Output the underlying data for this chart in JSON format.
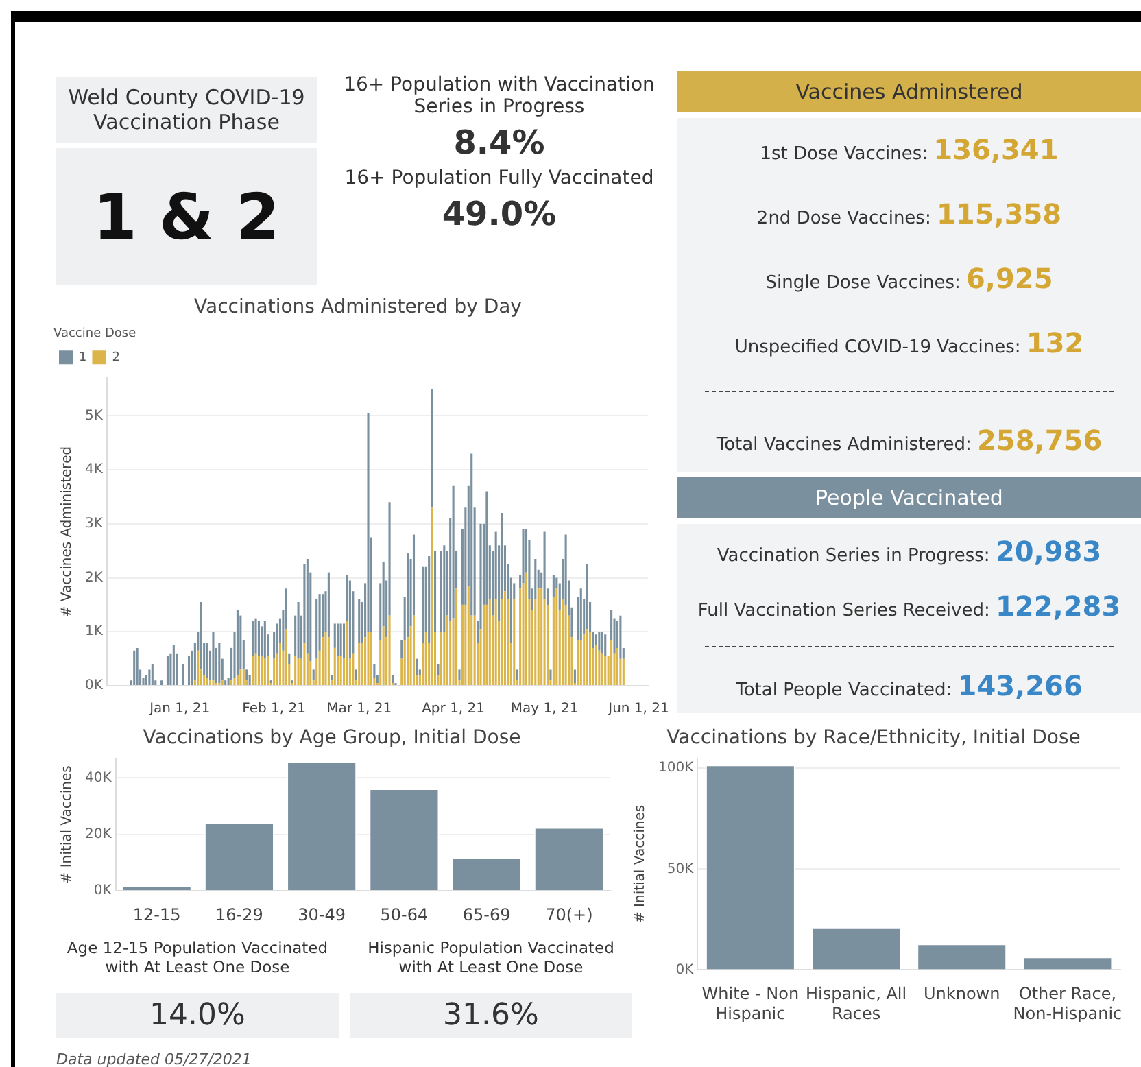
{
  "chart_data": [
    {
      "type": "other",
      "title": "Weld County COVID-19 Vaccination Phase",
      "annotations": [
        "1 & 2"
      ]
    },
    {
      "type": "other",
      "annotations": [
        "16+ Population with Vaccination Series in Progress",
        "8.4%",
        "16+ Population Fully Vaccinated",
        "49.0%"
      ]
    },
    {
      "type": "other",
      "title": "Vaccines Adminstered",
      "annotations": [
        "1st Dose Vaccines: 136,341",
        "2nd Dose Vaccines: 115,358",
        "Single Dose Vaccines: 6,925",
        "Unspecified COVID-19 Vaccines: 132",
        "Total Vaccines Administered: 258,756"
      ]
    },
    {
      "type": "other",
      "title": "People Vaccinated",
      "annotations": [
        "Vaccination Series in Progress: 20,983",
        "Full Vaccination Series Received: 122,283",
        "Total People Vaccinated: 143,266"
      ]
    },
    {
      "type": "bar",
      "title": "Vaccinations Administered by Day",
      "ylabel": "# Vaccines Administered",
      "legend_title": "Vaccine Dose",
      "legend": "top left",
      "stacked": true,
      "grid": "y",
      "x": [
        "2020-12-16",
        "2020-12-17",
        "2020-12-18",
        "2020-12-19",
        "2020-12-20",
        "2020-12-21",
        "2020-12-22",
        "2020-12-23",
        "2020-12-24",
        "2020-12-25",
        "2020-12-26",
        "2020-12-27",
        "2020-12-28",
        "2020-12-29",
        "2020-12-30",
        "2020-12-31",
        "2021-01-01",
        "2021-01-02",
        "2021-01-03",
        "2021-01-04",
        "2021-01-05",
        "2021-01-06",
        "2021-01-07",
        "2021-01-08",
        "2021-01-09",
        "2021-01-10",
        "2021-01-11",
        "2021-01-12",
        "2021-01-13",
        "2021-01-14",
        "2021-01-15",
        "2021-01-16",
        "2021-01-17",
        "2021-01-18",
        "2021-01-19",
        "2021-01-20",
        "2021-01-21",
        "2021-01-22",
        "2021-01-23",
        "2021-01-24",
        "2021-01-25",
        "2021-01-26",
        "2021-01-27",
        "2021-01-28",
        "2021-01-29",
        "2021-01-30",
        "2021-01-31",
        "2021-02-01",
        "2021-02-02",
        "2021-02-03",
        "2021-02-04",
        "2021-02-05",
        "2021-02-06",
        "2021-02-07",
        "2021-02-08",
        "2021-02-09",
        "2021-02-10",
        "2021-02-11",
        "2021-02-12",
        "2021-02-13",
        "2021-02-14",
        "2021-02-15",
        "2021-02-16",
        "2021-02-17",
        "2021-02-18",
        "2021-02-19",
        "2021-02-20",
        "2021-02-21",
        "2021-02-22",
        "2021-02-23",
        "2021-02-24",
        "2021-02-25",
        "2021-02-26",
        "2021-02-27",
        "2021-02-28",
        "2021-03-01",
        "2021-03-02",
        "2021-03-03",
        "2021-03-04",
        "2021-03-05",
        "2021-03-06",
        "2021-03-07",
        "2021-03-08",
        "2021-03-09",
        "2021-03-10",
        "2021-03-11",
        "2021-03-12",
        "2021-03-13",
        "2021-03-14",
        "2021-03-15",
        "2021-03-16",
        "2021-03-17",
        "2021-03-18",
        "2021-03-19",
        "2021-03-20",
        "2021-03-21",
        "2021-03-22",
        "2021-03-23",
        "2021-03-24",
        "2021-03-25",
        "2021-03-26",
        "2021-03-27",
        "2021-03-28",
        "2021-03-29",
        "2021-03-30",
        "2021-03-31",
        "2021-04-01",
        "2021-04-02",
        "2021-04-03",
        "2021-04-04",
        "2021-04-05",
        "2021-04-06",
        "2021-04-07",
        "2021-04-08",
        "2021-04-09",
        "2021-04-10",
        "2021-04-11",
        "2021-04-12",
        "2021-04-13",
        "2021-04-14",
        "2021-04-15",
        "2021-04-16",
        "2021-04-17",
        "2021-04-18",
        "2021-04-19",
        "2021-04-20",
        "2021-04-21",
        "2021-04-22",
        "2021-04-23",
        "2021-04-24",
        "2021-04-25",
        "2021-04-26",
        "2021-04-27",
        "2021-04-28",
        "2021-04-29",
        "2021-04-30",
        "2021-05-01",
        "2021-05-02",
        "2021-05-03",
        "2021-05-04",
        "2021-05-05",
        "2021-05-06",
        "2021-05-07",
        "2021-05-08",
        "2021-05-09",
        "2021-05-10",
        "2021-05-11",
        "2021-05-12",
        "2021-05-13",
        "2021-05-14",
        "2021-05-15",
        "2021-05-16",
        "2021-05-17",
        "2021-05-18",
        "2021-05-19",
        "2021-05-20",
        "2021-05-21",
        "2021-05-22",
        "2021-05-23",
        "2021-05-24",
        "2021-05-25",
        "2021-05-26",
        "2021-05-27"
      ],
      "xlim": [
        "2020-12-08",
        "2021-06-04"
      ],
      "xticks": [
        {
          "value": "2021-01-01",
          "label": "Jan 1, 21"
        },
        {
          "value": "2021-02-01",
          "label": "Feb 1, 21"
        },
        {
          "value": "2021-03-01",
          "label": "Mar 1, 21"
        },
        {
          "value": "2021-04-01",
          "label": "Apr 1, 21"
        },
        {
          "value": "2021-05-01",
          "label": "May 1, 21"
        },
        {
          "value": "2021-06-01",
          "label": "Jun 1, 21"
        }
      ],
      "ylim": [
        0,
        5.7
      ],
      "yticks": [
        {
          "value": 0,
          "label": "0K"
        },
        {
          "value": 1,
          "label": "1K"
        },
        {
          "value": 2,
          "label": "2K"
        },
        {
          "value": 3,
          "label": "3K"
        },
        {
          "value": 4,
          "label": "4K"
        },
        {
          "value": 5,
          "label": "5K"
        }
      ],
      "series": [
        {
          "name": "2",
          "color": "#dcb54a",
          "values": [
            0,
            0,
            0,
            0,
            0,
            0,
            0,
            0,
            0,
            0,
            0,
            0,
            0,
            0,
            0,
            0,
            0,
            0,
            0,
            0,
            0,
            0.1,
            0.65,
            0.3,
            0.2,
            0.15,
            0.1,
            0.1,
            0.05,
            0.05,
            0.1,
            0,
            0,
            0.1,
            0.15,
            0.2,
            0.3,
            0.3,
            0.1,
            0,
            0.55,
            0.6,
            0.55,
            0.55,
            0.5,
            0.55,
            0.05,
            0.5,
            0.6,
            0.8,
            0.65,
            1.05,
            0.4,
            0.05,
            0.55,
            0.5,
            0.5,
            0.8,
            0.6,
            0.45,
            0.1,
            0.5,
            0.65,
            0.9,
            1.0,
            0.9,
            0.1,
            0.7,
            0.55,
            0.55,
            0.5,
            1.2,
            0.5,
            0.6,
            0.1,
            0.8,
            0.8,
            0.9,
            1.0,
            1.0,
            0.15,
            0.05,
            0.85,
            1.1,
            0.9,
            1.3,
            0.05,
            0,
            0,
            0.5,
            0.85,
            0.9,
            1.1,
            1.3,
            0.2,
            0.2,
            0.8,
            1.0,
            0.8,
            3.3,
            1.0,
            0.2,
            1.0,
            1.0,
            1.3,
            1.2,
            1.25,
            1.8,
            0.1,
            1.5,
            1.5,
            1.85,
            1.3,
            1.3,
            0.8,
            1.05,
            1.5,
            1.5,
            1.6,
            1.3,
            1.6,
            1.2,
            1.6,
            1.75,
            1.6,
            0.8,
            1.6,
            0.1,
            1.8,
            1.9,
            2.1,
            1.6,
            1.4,
            1.6,
            1.8,
            1.8,
            1.6,
            1.5,
            0.1,
            1.65,
            1.8,
            1.4,
            1.6,
            1.5,
            1.3,
            0.9,
            0.05,
            0.85,
            0.85,
            0.95,
            1.05,
            1.0,
            0.7,
            0.75,
            0.65,
            0.6,
            0.55,
            0.55,
            0.85,
            0.6,
            0.7,
            0.5,
            0.5
          ]
        },
        {
          "name": "1",
          "color": "#7b909e",
          "values": [
            0.1,
            0.65,
            0.7,
            0.3,
            0.15,
            0.2,
            0.3,
            0.4,
            0.1,
            0,
            0.1,
            0,
            0.55,
            0.6,
            0.75,
            0.6,
            0,
            0.4,
            0,
            0.55,
            0.65,
            0.7,
            0.35,
            1.25,
            0.6,
            0.65,
            0.55,
            0.9,
            0.65,
            0.75,
            0.4,
            0.1,
            0.15,
            0.6,
            0.85,
            1.2,
            1.0,
            0.55,
            0.2,
            0.2,
            0.65,
            0.65,
            0.65,
            0.55,
            0.7,
            0.4,
            0.05,
            0.5,
            0.55,
            0.45,
            0.75,
            0.75,
            0.2,
            0.05,
            0.75,
            1.05,
            0.8,
            1.45,
            1.75,
            1.65,
            0.2,
            1.1,
            1.05,
            0.8,
            0.75,
            1.2,
            0.1,
            0.45,
            0.6,
            0.6,
            0.65,
            0.85,
            1.45,
            1.15,
            0.2,
            0.8,
            0.75,
            1.0,
            4.05,
            1.75,
            0.25,
            0.15,
            1.05,
            1.2,
            1.05,
            2.1,
            0.15,
            0.05,
            0,
            0.35,
            0.8,
            1.55,
            1.25,
            1.5,
            0.3,
            0.1,
            1.4,
            1.2,
            1.6,
            2.2,
            1.5,
            0.2,
            1.5,
            1.6,
            1.2,
            1.9,
            2.45,
            0.7,
            0.2,
            1.4,
            1.8,
            1.85,
            3.0,
            2.0,
            0.4,
            1.95,
            1.5,
            2.1,
            1.0,
            1.2,
            1.25,
            1.4,
            1.6,
            0.85,
            0.65,
            1.2,
            0.3,
            0.2,
            0.25,
            1.0,
            0.8,
            1.1,
            0.4,
            0.75,
            0.35,
            0.3,
            1.25,
            0.3,
            0.2,
            0.4,
            0.2,
            0.5,
            0.75,
            1.3,
            0.65,
            0.55,
            0.25,
            0.8,
            0.95,
            0.65,
            1.2,
            0.55,
            0.3,
            0.2,
            0.35,
            0.4,
            0.4,
            0,
            0.55,
            0.65,
            0.5,
            0.8,
            0.2
          ]
        }
      ]
    },
    {
      "type": "bar",
      "title": "Vaccinations by Age Group, Initial Dose",
      "ylabel": "# Initial Vaccines",
      "grid": "y",
      "categories": [
        "12-15",
        "16-29",
        "30-49",
        "50-64",
        "65-69",
        "70(+)"
      ],
      "series": [
        {
          "color": "#7b909e",
          "values": [
            1.9,
            24.2,
            45.7,
            36.2,
            11.8,
            22.5
          ]
        }
      ],
      "ylim": [
        0,
        47
      ],
      "yticks": [
        {
          "value": 0,
          "label": "0K"
        },
        {
          "value": 20,
          "label": "20K"
        },
        {
          "value": 40,
          "label": "40K"
        }
      ]
    },
    {
      "type": "bar",
      "title": "Vaccinations by Race/Ethnicity, Initial Dose",
      "ylabel": "# Initial Vaccines",
      "grid": "y",
      "categories": [
        "White - Non Hispanic",
        "Hispanic, All Races",
        "Unknown",
        "Other Race, Non-Hispanic"
      ],
      "series": [
        {
          "color": "#7b909e",
          "values": [
            101.7,
            21,
            13,
            6.5
          ]
        }
      ],
      "ylim": [
        0,
        105
      ],
      "yticks": [
        {
          "value": 0,
          "label": "0K"
        },
        {
          "value": 50,
          "label": "50K"
        },
        {
          "value": 100,
          "label": "100K"
        }
      ]
    },
    {
      "type": "other",
      "annotations": [
        "Age 12-15 Population Vaccinated with At Least One Dose",
        "14.0%",
        "Hispanic Population Vaccinated with At Least One Dose",
        "31.6%"
      ]
    },
    {
      "type": "other",
      "annotations": [
        "Data updated 05/27/2021"
      ]
    }
  ]
}
